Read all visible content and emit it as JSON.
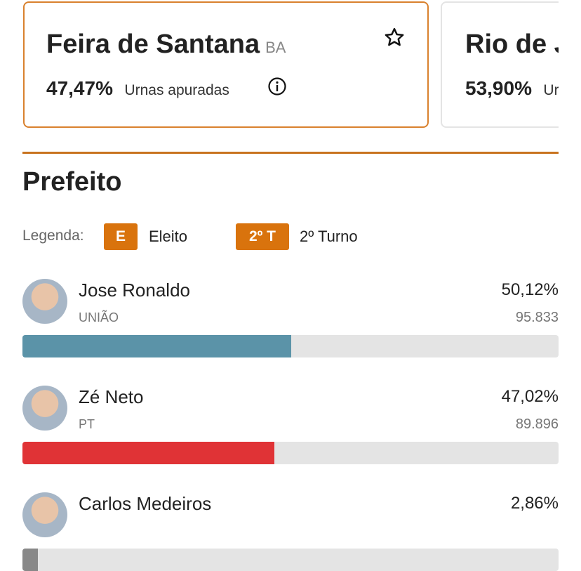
{
  "cities": [
    {
      "name": "Feira de Santana",
      "state": "BA",
      "percent": "47,47%",
      "label": "Urnas apuradas"
    },
    {
      "name": "Rio de Janeiro",
      "percent": "53,90%",
      "label": "Urnas apuradas"
    }
  ],
  "office": "Prefeito",
  "legend": {
    "title": "Legenda:",
    "items": [
      {
        "badge": "E",
        "text": "Eleito"
      },
      {
        "badge": "2º T",
        "text": "2º Turno"
      }
    ]
  },
  "candidates": [
    {
      "name": "Jose Ronaldo",
      "party": "UNIÃO",
      "percent": {
        "value": 50.12,
        "label": "50,12%"
      },
      "votes": "95.833",
      "color": "#5b93a8"
    },
    {
      "name": "Zé Neto",
      "party": "PT",
      "percent": {
        "value": 47.02,
        "label": "47,02%"
      },
      "votes": "89.896",
      "color": "#e03336"
    },
    {
      "name": "Carlos Medeiros",
      "party": "",
      "percent": {
        "value": 2.86,
        "label": "2,86%"
      },
      "votes": "",
      "color": "#888888"
    }
  ]
}
